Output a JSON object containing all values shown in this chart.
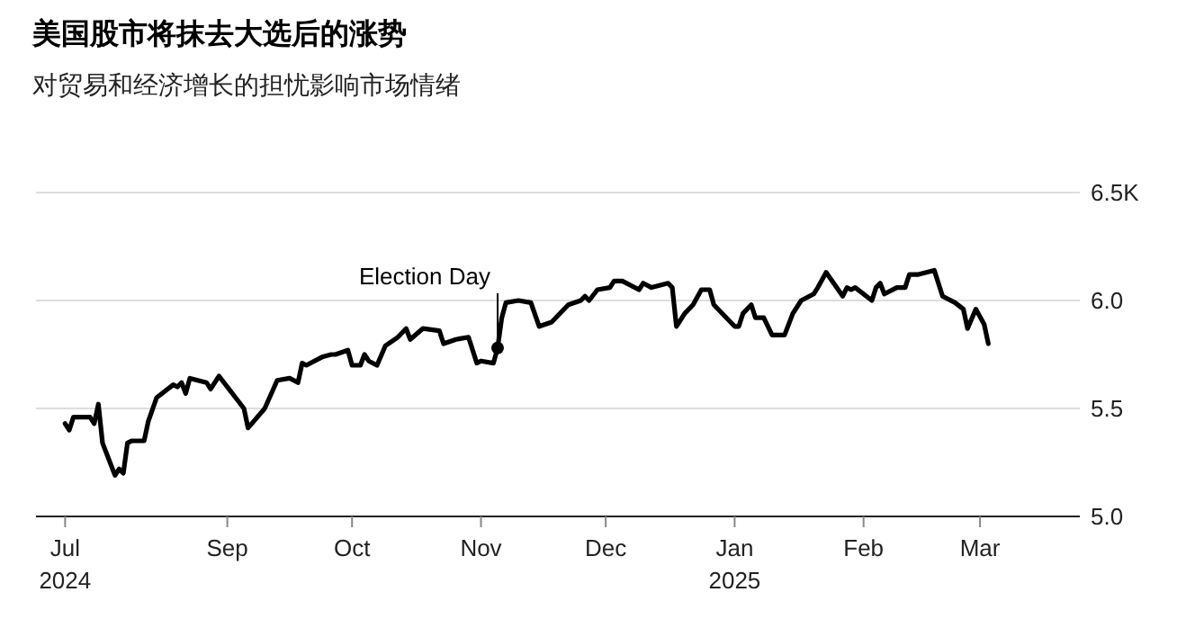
{
  "chart_data": {
    "type": "line",
    "title": "美国股市将抹去大选后的涨势",
    "subtitle": "对贸易和经济增长的担忧影响市场情绪",
    "x": [
      "2024-07-24",
      "2024-07-25",
      "2024-07-26",
      "2024-07-30",
      "2024-07-31",
      "2024-08-01",
      "2024-08-02",
      "2024-08-05",
      "2024-08-06",
      "2024-08-07",
      "2024-08-08",
      "2024-08-09",
      "2024-08-12",
      "2024-08-13",
      "2024-08-15",
      "2024-08-19",
      "2024-08-20",
      "2024-08-21",
      "2024-08-22",
      "2024-08-23",
      "2024-08-27",
      "2024-08-28",
      "2024-08-30",
      "2024-09-03",
      "2024-09-05",
      "2024-09-06",
      "2024-09-10",
      "2024-09-13",
      "2024-09-16",
      "2024-09-18",
      "2024-09-19",
      "2024-09-20",
      "2024-09-24",
      "2024-09-26",
      "2024-09-27",
      "2024-09-30",
      "2024-10-01",
      "2024-10-03",
      "2024-10-04",
      "2024-10-05",
      "2024-10-07",
      "2024-10-09",
      "2024-10-12",
      "2024-10-14",
      "2024-10-15",
      "2024-10-18",
      "2024-10-22",
      "2024-10-23",
      "2024-10-26",
      "2024-10-29",
      "2024-10-31",
      "2024-11-01",
      "2024-11-04",
      "2024-11-05",
      "2024-11-06",
      "2024-11-07",
      "2024-11-10",
      "2024-11-13",
      "2024-11-15",
      "2024-11-18",
      "2024-11-22",
      "2024-11-25",
      "2024-11-26",
      "2024-11-27",
      "2024-11-29",
      "2024-12-02",
      "2024-12-03",
      "2024-12-05",
      "2024-12-09",
      "2024-12-10",
      "2024-12-12",
      "2024-12-16",
      "2024-12-17",
      "2024-12-18",
      "2024-12-20",
      "2024-12-22",
      "2024-12-24",
      "2024-12-26",
      "2024-12-27",
      "2025-01-01",
      "2025-01-02",
      "2025-01-03",
      "2025-01-05",
      "2025-01-06",
      "2025-01-08",
      "2025-01-10",
      "2025-01-13",
      "2025-01-15",
      "2025-01-17",
      "2025-01-20",
      "2025-01-21",
      "2025-01-23",
      "2025-01-27",
      "2025-01-28",
      "2025-01-29",
      "2025-01-30",
      "2025-02-03",
      "2025-02-04",
      "2025-02-05",
      "2025-02-06",
      "2025-02-09",
      "2025-02-11",
      "2025-02-12",
      "2025-02-14",
      "2025-02-18",
      "2025-02-20",
      "2025-02-23",
      "2025-02-25",
      "2025-02-26",
      "2025-02-28",
      "2025-03-02",
      "2025-03-03"
    ],
    "series": [
      {
        "color": "#000000",
        "values": [
          5.43,
          5.4,
          5.46,
          5.46,
          5.43,
          5.52,
          5.34,
          5.19,
          5.22,
          5.2,
          5.34,
          5.35,
          5.35,
          5.44,
          5.55,
          5.61,
          5.6,
          5.62,
          5.57,
          5.64,
          5.62,
          5.59,
          5.65,
          5.55,
          5.5,
          5.41,
          5.5,
          5.63,
          5.64,
          5.62,
          5.71,
          5.7,
          5.74,
          5.75,
          5.75,
          5.77,
          5.7,
          5.7,
          5.75,
          5.72,
          5.7,
          5.79,
          5.83,
          5.87,
          5.82,
          5.87,
          5.86,
          5.8,
          5.82,
          5.83,
          5.71,
          5.72,
          5.71,
          5.78,
          5.92,
          5.99,
          6.0,
          5.99,
          5.88,
          5.9,
          5.98,
          6.0,
          6.02,
          6.0,
          6.05,
          6.06,
          6.09,
          6.09,
          6.05,
          6.08,
          6.06,
          6.08,
          6.06,
          5.88,
          5.94,
          5.98,
          6.05,
          6.05,
          5.98,
          5.88,
          5.88,
          5.94,
          5.98,
          5.92,
          5.92,
          5.84,
          5.84,
          5.94,
          6.0,
          6.03,
          6.06,
          6.13,
          6.02,
          6.06,
          6.05,
          6.06,
          6.0,
          6.06,
          6.08,
          6.03,
          6.06,
          6.06,
          6.12,
          6.12,
          6.14,
          6.02,
          5.99,
          5.96,
          5.87,
          5.96,
          5.89,
          5.8
        ]
      }
    ],
    "xlim": [
      "2024-07-17",
      "2025-03-25"
    ],
    "xticks": [
      {
        "value": "2024-07-24",
        "label": "Jul\n2024"
      },
      {
        "value": "2024-09-01",
        "label": "Sep"
      },
      {
        "value": "2024-10-01",
        "label": "Oct"
      },
      {
        "value": "2024-11-01",
        "label": "Nov"
      },
      {
        "value": "2024-12-01",
        "label": "Dec"
      },
      {
        "value": "2025-01-01",
        "label": "Jan\n2025"
      },
      {
        "value": "2025-02-01",
        "label": "Feb"
      },
      {
        "value": "2025-03-01",
        "label": "Mar"
      }
    ],
    "ylim": [
      5,
      6.5
    ],
    "yticks": [
      {
        "value": 5,
        "label": "5.0"
      },
      5.5,
      {
        "value": 6,
        "label": "6.0"
      },
      {
        "value": 6.5,
        "label": "6.5K"
      }
    ],
    "grid": "y",
    "line_style": "solid",
    "annotations": [
      {
        "text": "Election Day",
        "x": "2024-11-05",
        "y": 5.78
      }
    ]
  }
}
